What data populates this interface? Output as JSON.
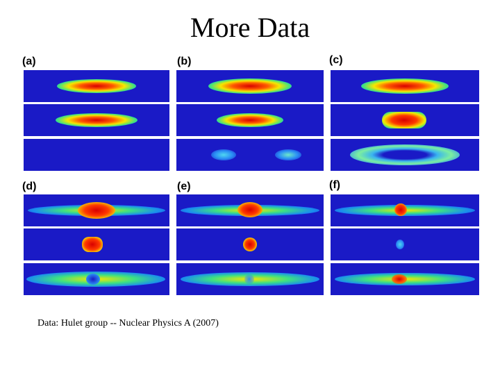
{
  "slide": {
    "title": "More Data",
    "caption": "Data: Hulet group -- Nuclear Physics A (2007)"
  },
  "figure": {
    "panels": [
      {
        "label": "(a)"
      },
      {
        "label": "(b)"
      },
      {
        "label": "(c)"
      },
      {
        "label": "(d)"
      },
      {
        "label": "(e)"
      },
      {
        "label": "(f)"
      }
    ]
  },
  "colors": {
    "background": "#ffffff",
    "panel_bg": "#1a1ac6"
  }
}
